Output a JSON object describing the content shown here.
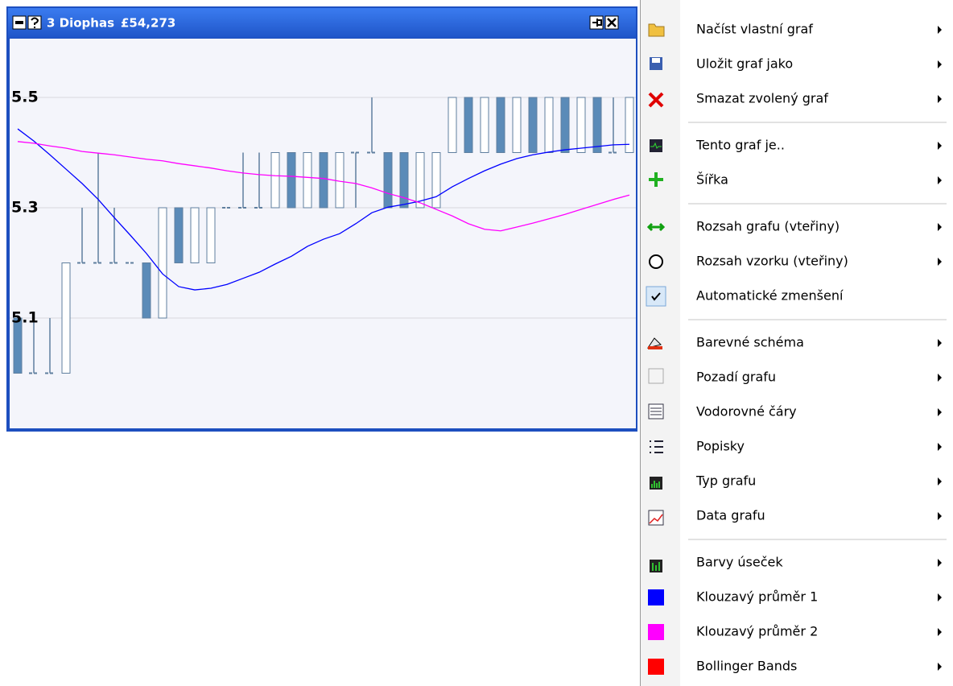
{
  "window": {
    "title": "3 Diophas",
    "value": "£54,273",
    "chart_data": {
      "type": "candlestick",
      "open": [
        5.1,
        5.0,
        5.0,
        5.0,
        5.2,
        5.2,
        5.2,
        5.2,
        5.2,
        5.1,
        5.3,
        5.2,
        5.2,
        5.3,
        5.3,
        5.3,
        5.3,
        5.4,
        5.3,
        5.4,
        5.3,
        5.4,
        5.4,
        5.4,
        5.4,
        5.3,
        5.3,
        5.4,
        5.5,
        5.4,
        5.5,
        5.4,
        5.5,
        5.4,
        5.5,
        5.4,
        5.5,
        5.4,
        5.4
      ],
      "high": [
        5.1,
        5.1,
        5.1,
        5.2,
        5.3,
        5.4,
        5.3,
        5.2,
        5.2,
        5.3,
        5.3,
        5.3,
        5.3,
        5.3,
        5.4,
        5.4,
        5.4,
        5.4,
        5.4,
        5.4,
        5.4,
        5.4,
        5.5,
        5.4,
        5.4,
        5.4,
        5.4,
        5.5,
        5.5,
        5.5,
        5.5,
        5.5,
        5.5,
        5.5,
        5.5,
        5.5,
        5.5,
        5.5,
        5.5
      ],
      "low": [
        5.0,
        5.0,
        5.0,
        5.0,
        5.2,
        5.2,
        5.2,
        5.2,
        5.1,
        5.1,
        5.2,
        5.2,
        5.2,
        5.3,
        5.3,
        5.3,
        5.3,
        5.3,
        5.3,
        5.3,
        5.3,
        5.3,
        5.4,
        5.3,
        5.3,
        5.3,
        5.3,
        5.4,
        5.4,
        5.4,
        5.4,
        5.4,
        5.4,
        5.4,
        5.4,
        5.4,
        5.4,
        5.4,
        5.4
      ],
      "close": [
        5.0,
        5.0,
        5.0,
        5.2,
        5.2,
        5.2,
        5.2,
        5.2,
        5.1,
        5.3,
        5.2,
        5.3,
        5.3,
        5.3,
        5.3,
        5.3,
        5.4,
        5.3,
        5.4,
        5.3,
        5.4,
        5.4,
        5.4,
        5.3,
        5.3,
        5.4,
        5.4,
        5.5,
        5.4,
        5.5,
        5.4,
        5.5,
        5.4,
        5.5,
        5.4,
        5.5,
        5.4,
        5.4,
        5.5
      ],
      "up_color": "#ffffff",
      "down_color": "#5b8bb8",
      "edge_color": "#5f7f9f",
      "series": [
        {
          "color": "#0000ff",
          "values": [
            5.443,
            5.421,
            5.396,
            5.37,
            5.344,
            5.315,
            5.282,
            5.25,
            5.217,
            5.18,
            5.157,
            5.151,
            5.154,
            5.161,
            5.172,
            5.183,
            5.198,
            5.212,
            5.23,
            5.243,
            5.253,
            5.271,
            5.291,
            5.301,
            5.306,
            5.312,
            5.32,
            5.338,
            5.353,
            5.367,
            5.379,
            5.389,
            5.396,
            5.401,
            5.405,
            5.408,
            5.411,
            5.414,
            5.415
          ]
        },
        {
          "color": "#ff00ff",
          "values": [
            5.42,
            5.417,
            5.412,
            5.408,
            5.402,
            5.399,
            5.396,
            5.392,
            5.388,
            5.385,
            5.38,
            5.376,
            5.372,
            5.367,
            5.363,
            5.36,
            5.358,
            5.357,
            5.355,
            5.353,
            5.348,
            5.344,
            5.336,
            5.326,
            5.318,
            5.309,
            5.297,
            5.285,
            5.271,
            5.261,
            5.258,
            5.265,
            5.272,
            5.28,
            5.288,
            5.297,
            5.306,
            5.315,
            5.323
          ]
        }
      ],
      "ylim": [
        4.9,
        5.6
      ],
      "yticks": [
        5.5,
        5.3,
        5.1
      ],
      "grid": true
    }
  },
  "menu": {
    "groups": [
      [
        {
          "label": "Načíst vlastní graf",
          "submenu": true
        },
        {
          "label": "Uložit graf jako",
          "submenu": true
        },
        {
          "label": "Smazat zvolený graf",
          "submenu": true
        }
      ],
      [
        {
          "label": "Tento graf je..",
          "submenu": true
        },
        {
          "label": "Šířka",
          "submenu": true
        }
      ],
      [
        {
          "label": "Rozsah grafu (vteřiny)",
          "submenu": true
        },
        {
          "label": "Rozsah vzorku (vteřiny)",
          "submenu": true
        },
        {
          "label": "Automatické zmenšení",
          "checked": true
        }
      ],
      [
        {
          "label": "Barevné schéma",
          "submenu": true
        },
        {
          "label": "Pozadí grafu",
          "submenu": true
        },
        {
          "label": "Vodorovné čáry",
          "submenu": true
        },
        {
          "label": "Popisky",
          "submenu": true
        },
        {
          "label": "Typ grafu",
          "submenu": true
        },
        {
          "label": "Data grafu",
          "submenu": true
        }
      ],
      [
        {
          "label": "Barvy úseček",
          "submenu": true
        },
        {
          "label": "Klouzavý průměr 1",
          "submenu": true,
          "color": "#0000ff"
        },
        {
          "label": "Klouzavý průměr 2",
          "submenu": true,
          "color": "#ff00ff"
        },
        {
          "label": "Bollinger Bands",
          "submenu": true,
          "color": "#ff0000"
        }
      ]
    ]
  }
}
